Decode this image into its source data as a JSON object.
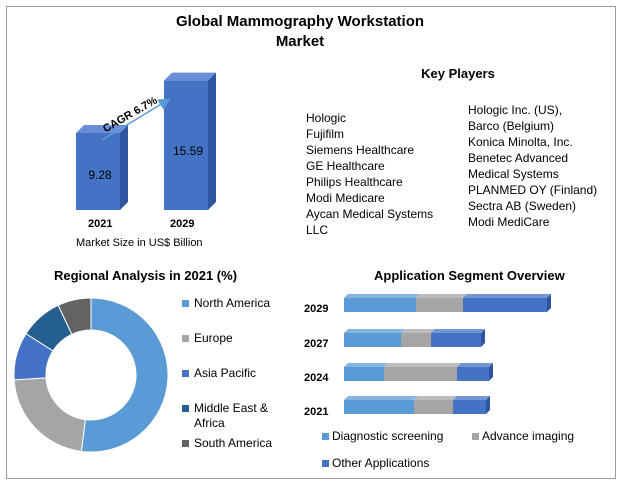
{
  "title": "Global Mammography Workstation Market",
  "key_players": {
    "title": "Key Players",
    "col1": [
      "Hologic",
      "Fujifilm",
      "Siemens Healthcare",
      "GE Healthcare",
      "Philips Healthcare",
      "Modi Medicare",
      "Aycan Medical Systems",
      "LLC"
    ],
    "col2": [
      "Hologic Inc. (US),",
      "Barco (Belgium)",
      "Konica Minolta, Inc.",
      "Benetec Advanced",
      "Medical Systems",
      "PLANMED OY (Finland)",
      "Sectra AB (Sweden)",
      "Modi MediCare"
    ]
  },
  "colors": {
    "blue_dark": "#4472c4",
    "blue_light": "#5b9bd5",
    "gray": "#a5a5a5",
    "navy": "#255e91",
    "dark_gray": "#636363",
    "arrow": "#5b9bd5"
  },
  "chart_data": [
    {
      "type": "bar",
      "categories": [
        "2021",
        "2029"
      ],
      "values": [
        9.28,
        15.59
      ],
      "value_labels": [
        "9.28",
        "15.59"
      ],
      "xlabel": "Market Size in US$ Billion",
      "annotation": "CAGR 6.7%"
    },
    {
      "type": "pie",
      "title": "Regional Analysis in 2021 (%)",
      "labels": [
        "North America",
        "Europe",
        "Asia Pacific",
        "Middle East & Africa",
        "South America"
      ],
      "values": [
        52,
        22,
        10,
        9,
        7
      ],
      "colors": [
        "#5b9bd5",
        "#a5a5a5",
        "#4472c4",
        "#255e91",
        "#636363"
      ],
      "donut": true
    },
    {
      "type": "bar",
      "orientation": "horizontal",
      "stacked": true,
      "title": "Application Segment Overview",
      "categories": [
        "2029",
        "2027",
        "2024",
        "2021"
      ],
      "series": [
        {
          "name": "Diagnostic screening",
          "values": [
            72,
            57,
            40,
            70
          ],
          "color": "#5b9bd5"
        },
        {
          "name": "Advance imaging",
          "values": [
            47,
            30,
            73,
            39
          ],
          "color": "#a5a5a5"
        },
        {
          "name": "Other Applications",
          "values": [
            84,
            50,
            32,
            33
          ],
          "color": "#4472c4"
        }
      ]
    }
  ]
}
